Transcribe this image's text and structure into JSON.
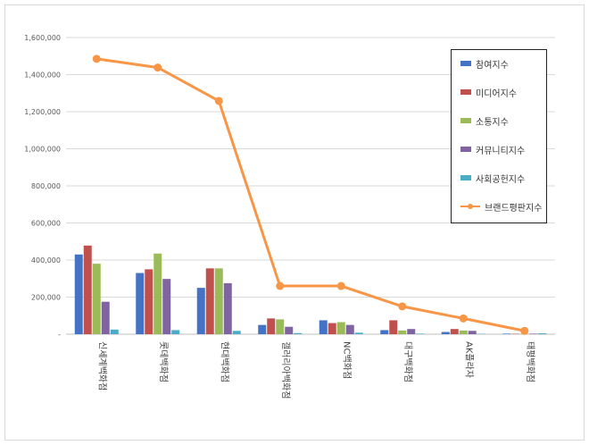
{
  "chart_data": {
    "type": "bar",
    "categories": [
      "신세계백화점",
      "롯데백화점",
      "현대백화점",
      "갤러리아백화점",
      "NC백화점",
      "대구백화점",
      "AK플라자",
      "태평백화점"
    ],
    "ylim": [
      0,
      1600000
    ],
    "yticks": [
      "-",
      "200,000",
      "400,000",
      "600,000",
      "800,000",
      "1,000,000",
      "1,200,000",
      "1,400,000",
      "1,600,000"
    ],
    "grid": true,
    "legend_position": "right",
    "series": [
      {
        "name": "참여지수",
        "type": "bar",
        "color": "#4472c4",
        "values": [
          430000,
          330000,
          250000,
          50000,
          75000,
          22000,
          12000,
          3000
        ]
      },
      {
        "name": "미디어지수",
        "type": "bar",
        "color": "#c0504d",
        "values": [
          478000,
          350000,
          355000,
          85000,
          60000,
          75000,
          28000,
          2000
        ]
      },
      {
        "name": "소통지수",
        "type": "bar",
        "color": "#9bbb59",
        "values": [
          380000,
          435000,
          355000,
          80000,
          65000,
          20000,
          20000,
          2000
        ]
      },
      {
        "name": "커뮤니티지수",
        "type": "bar",
        "color": "#8064a2",
        "values": [
          175000,
          298000,
          275000,
          40000,
          50000,
          28000,
          18000,
          3000
        ]
      },
      {
        "name": "사회공헌지수",
        "type": "bar",
        "color": "#4bacc6",
        "values": [
          25000,
          22000,
          18000,
          6000,
          8000,
          3000,
          2000,
          5000
        ]
      },
      {
        "name": "브랜드평판지수",
        "type": "line",
        "color": "#f79646",
        "values": [
          1485000,
          1438000,
          1258000,
          260000,
          260000,
          150000,
          85000,
          18000
        ]
      }
    ]
  }
}
